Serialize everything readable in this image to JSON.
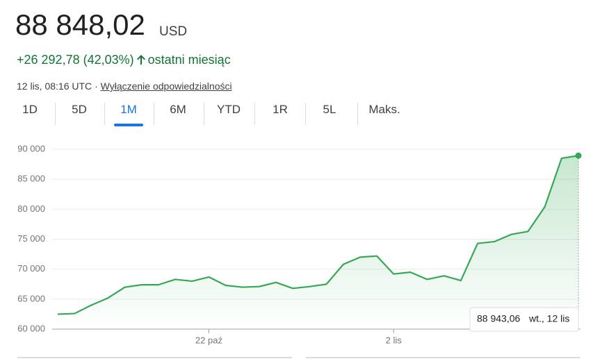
{
  "header": {
    "price": "88 848,02",
    "currency": "USD",
    "change": "+26 292,78 (42,03%)",
    "period": "ostatni miesiąc",
    "timestamp": "12 lis, 08:16 UTC",
    "separator": "·",
    "disclaimer": "Wyłączenie odpowiedzialności"
  },
  "tabs": {
    "items": [
      "1D",
      "5D",
      "1M",
      "6M",
      "YTD",
      "1R",
      "5L",
      "Maks."
    ],
    "selected": "1M"
  },
  "chart_data": {
    "type": "area",
    "color": "#34a853",
    "categories": [
      null,
      null,
      null,
      null,
      null,
      null,
      null,
      null,
      null,
      "22 paź",
      null,
      null,
      null,
      null,
      null,
      null,
      null,
      null,
      null,
      null,
      "2 lis",
      null,
      null,
      null,
      null,
      null,
      null,
      null,
      null,
      null,
      null,
      null
    ],
    "values": [
      62500,
      62600,
      64000,
      65200,
      67000,
      67400,
      67400,
      68300,
      68000,
      68700,
      67300,
      67000,
      67100,
      67800,
      66800,
      67100,
      67500,
      70800,
      72000,
      72200,
      69200,
      69500,
      68300,
      68900,
      68100,
      74300,
      74600,
      75800,
      76300,
      80400,
      88500,
      88943.06
    ],
    "ylim": [
      60000,
      90000
    ],
    "yticks": [
      {
        "value": 60000,
        "label": "60 000"
      },
      {
        "value": 65000,
        "label": "65 000"
      },
      {
        "value": 70000,
        "label": "70 000"
      },
      {
        "value": 75000,
        "label": "75 000"
      },
      {
        "value": 80000,
        "label": "80 000"
      },
      {
        "value": 85000,
        "label": "85 000"
      },
      {
        "value": 90000,
        "label": "90 000"
      }
    ],
    "grid": true,
    "tooltip": {
      "value": "88 943,06",
      "date": "wt., 12 lis"
    }
  }
}
